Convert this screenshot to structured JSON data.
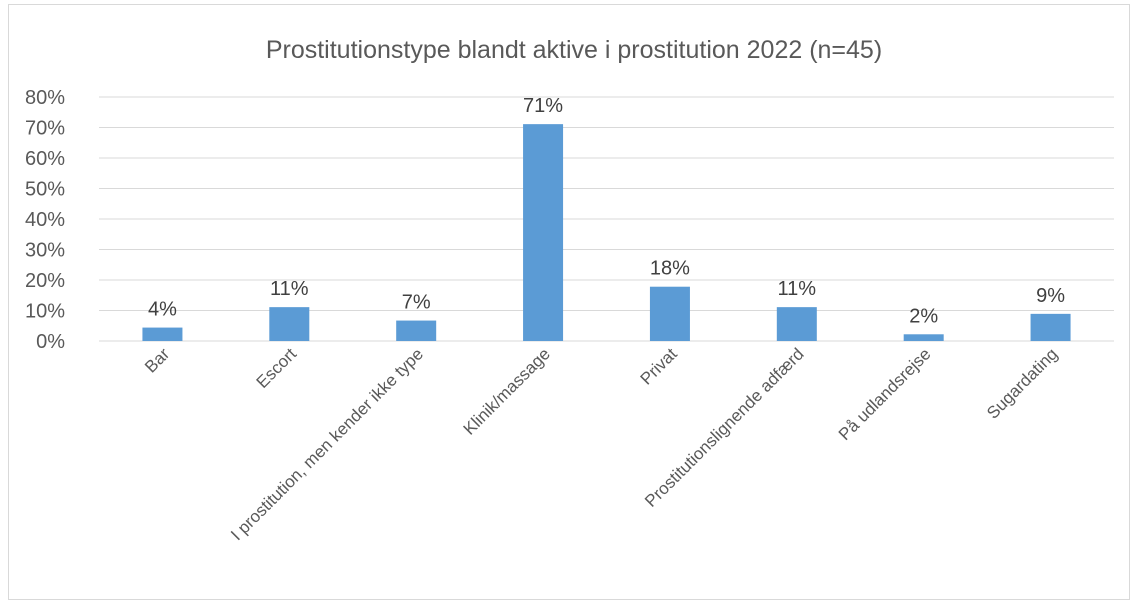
{
  "chart_data": {
    "type": "bar",
    "title": "Prostitutionstype blandt aktive i prostitution 2022 (n=45)",
    "categories": [
      "Bar",
      "Escort",
      "I prostitution, men kender ikke type",
      "Klinik/massage",
      "Privat",
      "Prostitutionslignende adfærd",
      "På udlandsrejse",
      "Sugardating"
    ],
    "values": [
      4.4,
      11.1,
      6.7,
      71.1,
      17.8,
      11.1,
      2.2,
      8.9
    ],
    "data_labels": [
      "4%",
      "11%",
      "7%",
      "71%",
      "18%",
      "11%",
      "2%",
      "9%"
    ],
    "y_ticks": [
      "0%",
      "10%",
      "20%",
      "30%",
      "40%",
      "50%",
      "60%",
      "70%",
      "80%"
    ],
    "ylim": [
      0,
      80
    ],
    "xlabel": "",
    "ylabel": "",
    "grid": true,
    "legend": "none",
    "bar_color": "#5b9bd5",
    "grid_color": "#d9d9d9"
  }
}
